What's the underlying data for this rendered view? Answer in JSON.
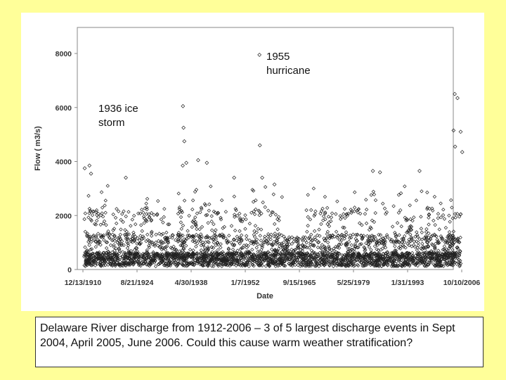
{
  "chart_data": {
    "type": "scatter",
    "title": "",
    "xlabel": "Date",
    "ylabel": "Flow ( m3/s)",
    "x_tick_labels": [
      "12/13/1910",
      "8/21/1924",
      "4/30/1938",
      "1/7/1952",
      "9/15/1965",
      "5/25/1979",
      "1/31/1993",
      "10/10/2006"
    ],
    "x_tick_years": [
      1910.95,
      1924.64,
      1938.33,
      1952.02,
      1965.71,
      1979.39,
      1993.08,
      2006.77
    ],
    "xlim": [
      1910.95,
      2006.77
    ],
    "y_ticks": [
      0,
      2000,
      4000,
      6000,
      8000
    ],
    "ylim": [
      0,
      8000
    ],
    "grid": false,
    "marker": "open-diamond",
    "peak_events": [
      {
        "year": 1911.4,
        "flow": 3750
      },
      {
        "year": 1912.6,
        "flow": 3850
      },
      {
        "year": 1913.0,
        "flow": 3550
      },
      {
        "year": 1921.8,
        "flow": 3400
      },
      {
        "year": 1936.2,
        "flow": 3850
      },
      {
        "year": 1936.25,
        "flow": 6050
      },
      {
        "year": 1936.4,
        "flow": 5250
      },
      {
        "year": 1936.6,
        "flow": 4750
      },
      {
        "year": 1937.1,
        "flow": 3950
      },
      {
        "year": 1940.1,
        "flow": 4050
      },
      {
        "year": 1942.3,
        "flow": 3950
      },
      {
        "year": 1949.2,
        "flow": 3400
      },
      {
        "year": 1955.6,
        "flow": 7950
      },
      {
        "year": 1955.7,
        "flow": 4600
      },
      {
        "year": 1956.3,
        "flow": 3400
      },
      {
        "year": 1959.4,
        "flow": 3150
      },
      {
        "year": 1984.3,
        "flow": 3650
      },
      {
        "year": 1986.1,
        "flow": 3600
      },
      {
        "year": 1996.1,
        "flow": 3650
      },
      {
        "year": 2004.7,
        "flow": 5150
      },
      {
        "year": 2005.0,
        "flow": 6500
      },
      {
        "year": 2005.1,
        "flow": 4550
      },
      {
        "year": 2005.7,
        "flow": 6350
      },
      {
        "year": 2006.5,
        "flow": 5100
      },
      {
        "year": 2006.9,
        "flow": 4350
      }
    ],
    "annotations": [
      {
        "text": "1955 hurricane",
        "year": 1955.6,
        "flow": 7950
      },
      {
        "text": "1936 ice storm",
        "year": 1936.25,
        "flow": 6050
      }
    ]
  },
  "annotation_1955": {
    "line1": "1955",
    "line2": "hurricane"
  },
  "annotation_1936": {
    "line1": "1936 ice",
    "line2": "storm"
  },
  "caption": "Delaware River discharge from 1912-2006 – 3 of 5 largest discharge events in Sept 2004, April 2005, June 2006. Could this cause warm weather stratification?",
  "colors": {
    "background": "#ffff99",
    "panel": "#ffffff",
    "marker": "#222222"
  }
}
